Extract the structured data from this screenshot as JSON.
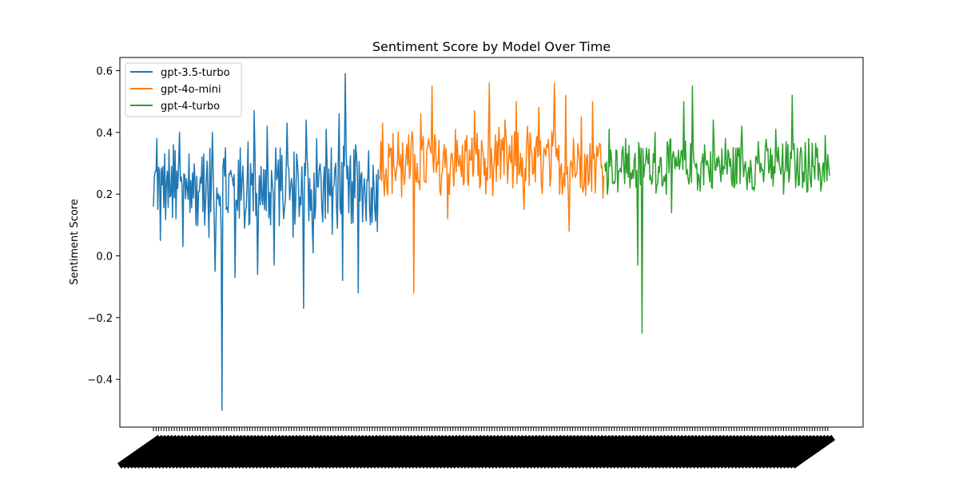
{
  "chart_data": {
    "type": "line",
    "title": "Sentiment Score by Model Over Time",
    "xlabel": "",
    "ylabel": "Sentiment Score",
    "ylim": [
      -0.55,
      0.64
    ],
    "y_ticks": [
      -0.4,
      -0.2,
      0.0,
      0.2,
      0.4,
      0.6
    ],
    "y_tick_labels": [
      "−0.4",
      "−0.2",
      "0.0",
      "0.2",
      "0.4",
      "0.6"
    ],
    "x_tick_labels": "dense, illegible overlapping date labels rotated ~45°",
    "legend_position": "upper left",
    "grid": false,
    "series": [
      {
        "name": "gpt-3.5-turbo",
        "color": "#1f77b4",
        "x_range": [
          0,
          259
        ],
        "mean": 0.22,
        "values_sampled": [
          0.16,
          0.38,
          0.05,
          0.29,
          0.24,
          0.19,
          0.36,
          0.12,
          0.4,
          0.03,
          0.25,
          0.33,
          0.27,
          0.1,
          0.21,
          0.32,
          0.17,
          0.06,
          0.4,
          -0.05,
          0.2,
          -0.5,
          0.35,
          0.14,
          0.26,
          -0.07,
          0.31,
          0.18,
          0.09,
          0.37,
          0.23,
          0.47,
          -0.06,
          0.29,
          0.15,
          0.42,
          0.1,
          -0.03,
          0.26,
          0.35,
          0.12,
          0.43,
          0.22,
          0.06,
          0.33,
          0.19,
          -0.17,
          0.44,
          0.25,
          0.01,
          0.38,
          0.28,
          0.11,
          0.41,
          0.2,
          0.07,
          0.3,
          0.46,
          -0.08,
          0.59,
          0.14,
          0.24,
          0.36,
          -0.12,
          0.27,
          0.19,
          0.34,
          0.22,
          0.15,
          0.28
        ],
        "notable_points": {
          "max": 0.59,
          "min": -0.5
        }
      },
      {
        "name": "gpt-4o-mini",
        "color": "#ff7f0e",
        "x_range": [
          260,
          519
        ],
        "mean": 0.3,
        "values_sampled": [
          0.26,
          0.43,
          0.22,
          0.35,
          0.28,
          0.4,
          0.19,
          0.32,
          0.25,
          -0.12,
          0.3,
          0.46,
          0.24,
          0.38,
          0.55,
          0.27,
          0.21,
          0.36,
          0.12,
          0.33,
          0.41,
          0.29,
          0.23,
          0.39,
          0.31,
          0.47,
          0.26,
          0.35,
          0.2,
          0.56,
          0.28,
          0.37,
          0.25,
          0.44,
          0.3,
          0.22,
          0.5,
          0.27,
          0.15,
          0.42,
          0.33,
          0.24,
          0.48,
          0.29,
          0.36,
          0.26,
          0.56,
          0.31,
          0.2,
          0.52,
          0.08,
          0.38,
          0.27,
          0.45,
          0.33,
          0.23,
          0.5,
          0.29,
          0.36,
          0.26
        ],
        "notable_points": {
          "max": 0.56,
          "min": -0.12
        }
      },
      {
        "name": "gpt-4-turbo",
        "color": "#2ca02c",
        "x_range": [
          520,
          779
        ],
        "mean": 0.29,
        "values_sampled": [
          0.3,
          0.41,
          0.24,
          0.34,
          0.27,
          0.38,
          0.22,
          0.31,
          -0.03,
          -0.25,
          0.35,
          0.26,
          0.4,
          0.29,
          0.23,
          0.37,
          0.14,
          0.32,
          0.28,
          0.5,
          0.25,
          0.55,
          0.3,
          0.21,
          0.36,
          0.27,
          0.44,
          0.33,
          0.24,
          0.38,
          0.29,
          0.22,
          0.35,
          0.42,
          0.27,
          0.31,
          0.23,
          0.37,
          0.28,
          0.34,
          0.25,
          0.41,
          0.3,
          0.2,
          0.36,
          0.52,
          0.27,
          0.33,
          0.24,
          0.38,
          0.29,
          0.35,
          0.21,
          0.39,
          0.26
        ],
        "notable_points": {
          "max": 0.55,
          "min": -0.25
        }
      }
    ]
  }
}
